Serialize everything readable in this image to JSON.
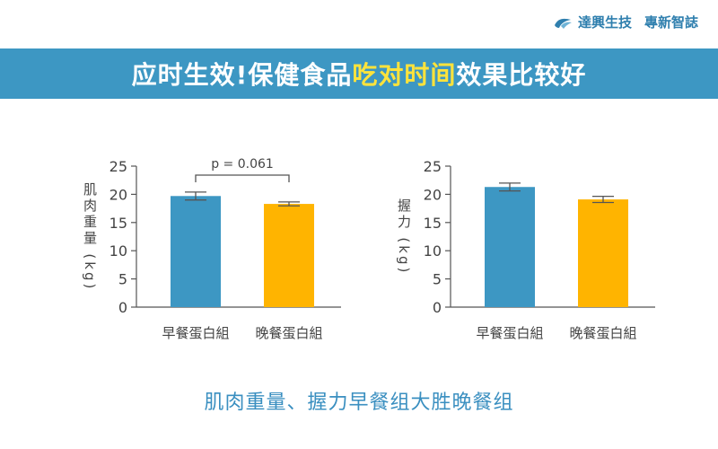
{
  "header": {
    "brand_name": "達興生技",
    "brand_tag": "專新智誌",
    "brand_icon": "wave-logo-icon"
  },
  "banner": {
    "title_pre": "应时生效!保健食品",
    "title_highlight": "吃对时间",
    "title_post": "效果比较好",
    "background": "#3d97c3",
    "highlight_color": "#ffe33b"
  },
  "caption": "肌肉重量、握力早餐组大胜晚餐组",
  "chart_data": [
    {
      "type": "bar",
      "ylabel": "肌肉重量 (kg)",
      "ylim": [
        0,
        25
      ],
      "yticks": [
        0,
        5,
        10,
        15,
        20,
        25
      ],
      "categories": [
        "早餐蛋白組",
        "晚餐蛋白組"
      ],
      "values": [
        19.7,
        18.3
      ],
      "errors": [
        0.7,
        0.35
      ],
      "colors": [
        "#3d97c3",
        "#ffb400"
      ],
      "annotation": "p = 0.061"
    },
    {
      "type": "bar",
      "ylabel": "握力 (kg)",
      "ylim": [
        0,
        25
      ],
      "yticks": [
        0,
        5,
        10,
        15,
        20,
        25
      ],
      "categories": [
        "早餐蛋白組",
        "晚餐蛋白組"
      ],
      "values": [
        21.3,
        19.1
      ],
      "errors": [
        0.7,
        0.55
      ],
      "colors": [
        "#3d97c3",
        "#ffb400"
      ]
    }
  ]
}
